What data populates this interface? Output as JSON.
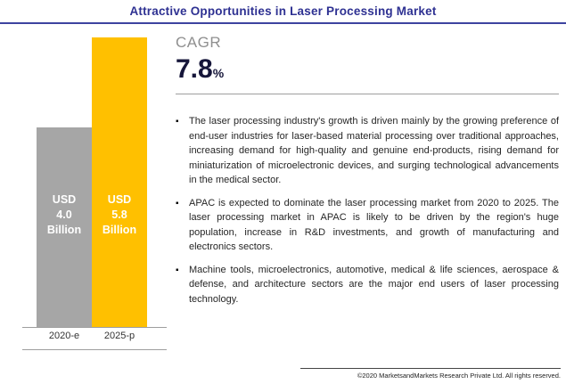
{
  "page": {
    "title": "Attractive Opportunities in Laser Processing Market",
    "footer": "©2020 MarketsandMarkets Research Private Ltd. All rights reserved."
  },
  "cagr": {
    "label": "CAGR",
    "value": "7.8",
    "unit": "%"
  },
  "chart_data": {
    "type": "bar",
    "categories": [
      "2020-e",
      "2025-p"
    ],
    "values": [
      4.0,
      5.8
    ],
    "bar_labels": [
      "USD 4.0 Billion",
      "USD 5.8 Billion"
    ],
    "bar_colors": [
      "#a6a6a6",
      "#ffc000"
    ],
    "value_unit": "USD Billion",
    "ylim": [
      0,
      5.8
    ],
    "title": "Attractive Opportunities in Laser Processing Market",
    "legend": "none",
    "grid": false
  },
  "bullets": [
    "The laser processing industry's growth is driven mainly by the growing preference of end-user industries for laser-based material processing over traditional approaches, increasing demand for high-quality and genuine end-products, rising demand for miniaturization of microelectronic devices, and surging technological advancements in the medical sector.",
    "APAC is expected to dominate the laser processing market from 2020 to 2025. The laser processing market in APAC is likely to be driven by the region's huge population, increase in R&D investments, and growth of manufacturing and electronics sectors.",
    "Machine tools, microelectronics, automotive, medical & life sciences, aerospace & defense, and architecture sectors are the major end users of laser processing technology."
  ],
  "colors": {
    "title": "#2e3192",
    "bar_gray": "#a6a6a6",
    "bar_yellow": "#ffc000",
    "cagr_label": "#8f8f8f",
    "cagr_value": "#16163a"
  }
}
